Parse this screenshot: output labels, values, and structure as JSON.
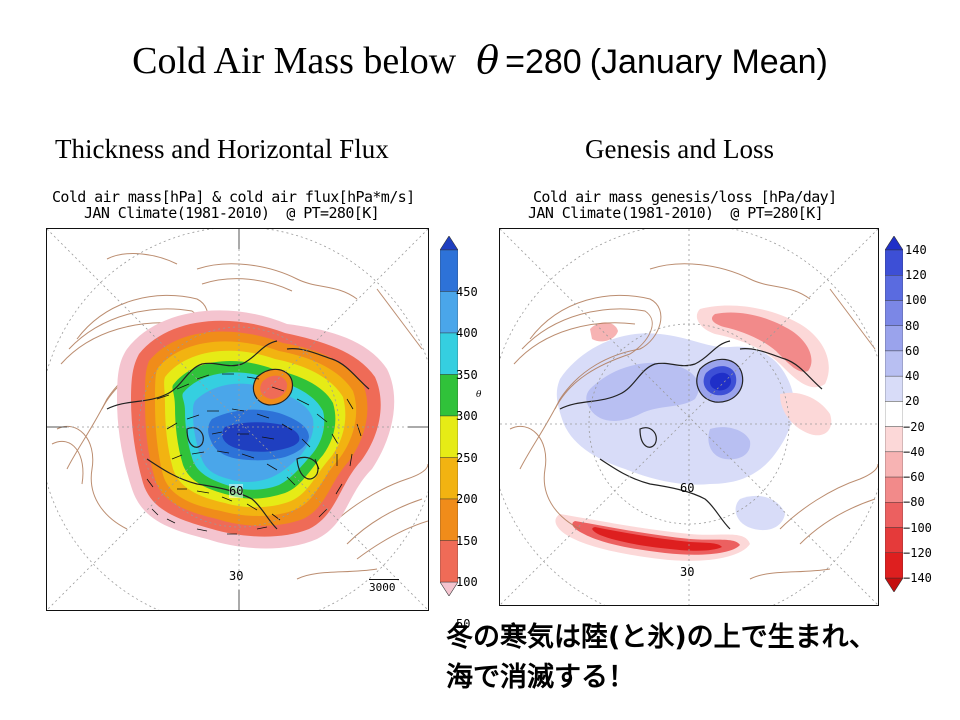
{
  "title": {
    "main": "Cold Air Mass below",
    "symbol": "θ",
    "value": "=280",
    "period": "(January Mean)"
  },
  "left_panel": {
    "subtitle": "Thickness and Horizontal Flux",
    "header_line1": "Cold air mass[hPa] & cold air flux[hPa*m/s]",
    "header_line2": "JAN Climate(1981-2010)  @ PT=280[K]",
    "lat_label_60": "60",
    "lat_label_30": "30",
    "vector_ref": "3000",
    "colorbar": {
      "labels": [
        "50",
        "100",
        "150",
        "200",
        "250",
        "300",
        "350",
        "400",
        "450"
      ],
      "colors": [
        "#f4c4cf",
        "#ef6b57",
        "#f08c1a",
        "#f2b311",
        "#e6eb16",
        "#30c23a",
        "#35cfe0",
        "#4aa6ea",
        "#2d72d8",
        "#1f3fc0"
      ]
    }
  },
  "right_panel": {
    "subtitle": "Genesis and Loss",
    "header_line1": "Cold air mass genesis/loss [hPa/day]",
    "header_line2": "JAN Climate(1981-2010)  @ PT=280[K]",
    "lat_label_60": "60",
    "lat_label_30": "30",
    "colorbar": {
      "labels": [
        "140",
        "120",
        "100",
        "80",
        "60",
        "40",
        "20",
        "−20",
        "−40",
        "−60",
        "−80",
        "−100",
        "−120",
        "−140"
      ],
      "colors": [
        "#1f2fc8",
        "#3d4fd6",
        "#5a6be0",
        "#7b87e6",
        "#9aa3ec",
        "#b8bff2",
        "#d8dcf8",
        "#ffffff",
        "#fcd8d8",
        "#f7b3b3",
        "#f28a8a",
        "#ec6060",
        "#e53a3a",
        "#de1f1f",
        "#c40f0f"
      ]
    }
  },
  "small_theta": "θ",
  "footer": {
    "line1": "冬の寒気は陸(と氷)の上で生まれ、",
    "line2": "海で消滅する！"
  },
  "colors": {
    "contour_brown": "#b07a58",
    "coast": "#222222",
    "grid": "#9a9a9a"
  }
}
